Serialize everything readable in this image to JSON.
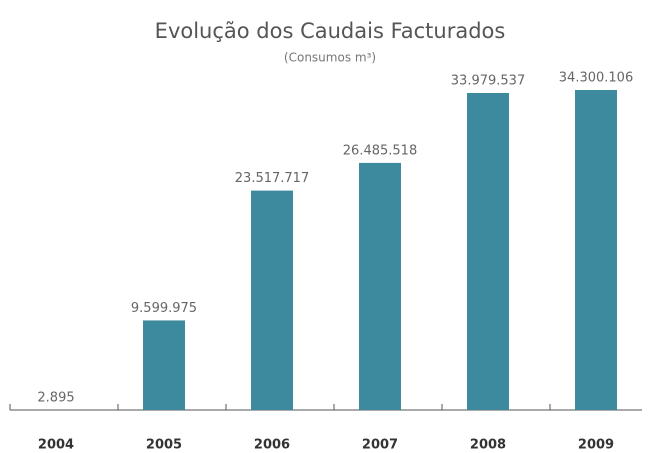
{
  "chart_data": {
    "type": "bar",
    "title": "Evolução dos Caudais Facturados",
    "subtitle": "(Consumos m³)",
    "categories": [
      "2004",
      "2005",
      "2006",
      "2007",
      "2008",
      "2009"
    ],
    "values": [
      2895,
      9599975,
      23517717,
      26485518,
      33979537,
      34300106
    ],
    "value_labels": [
      "2.895",
      "9.599.975",
      "23.517.717",
      "26.485.518",
      "33.979.537",
      "34.300.106"
    ],
    "color": "#3d8a9e"
  }
}
